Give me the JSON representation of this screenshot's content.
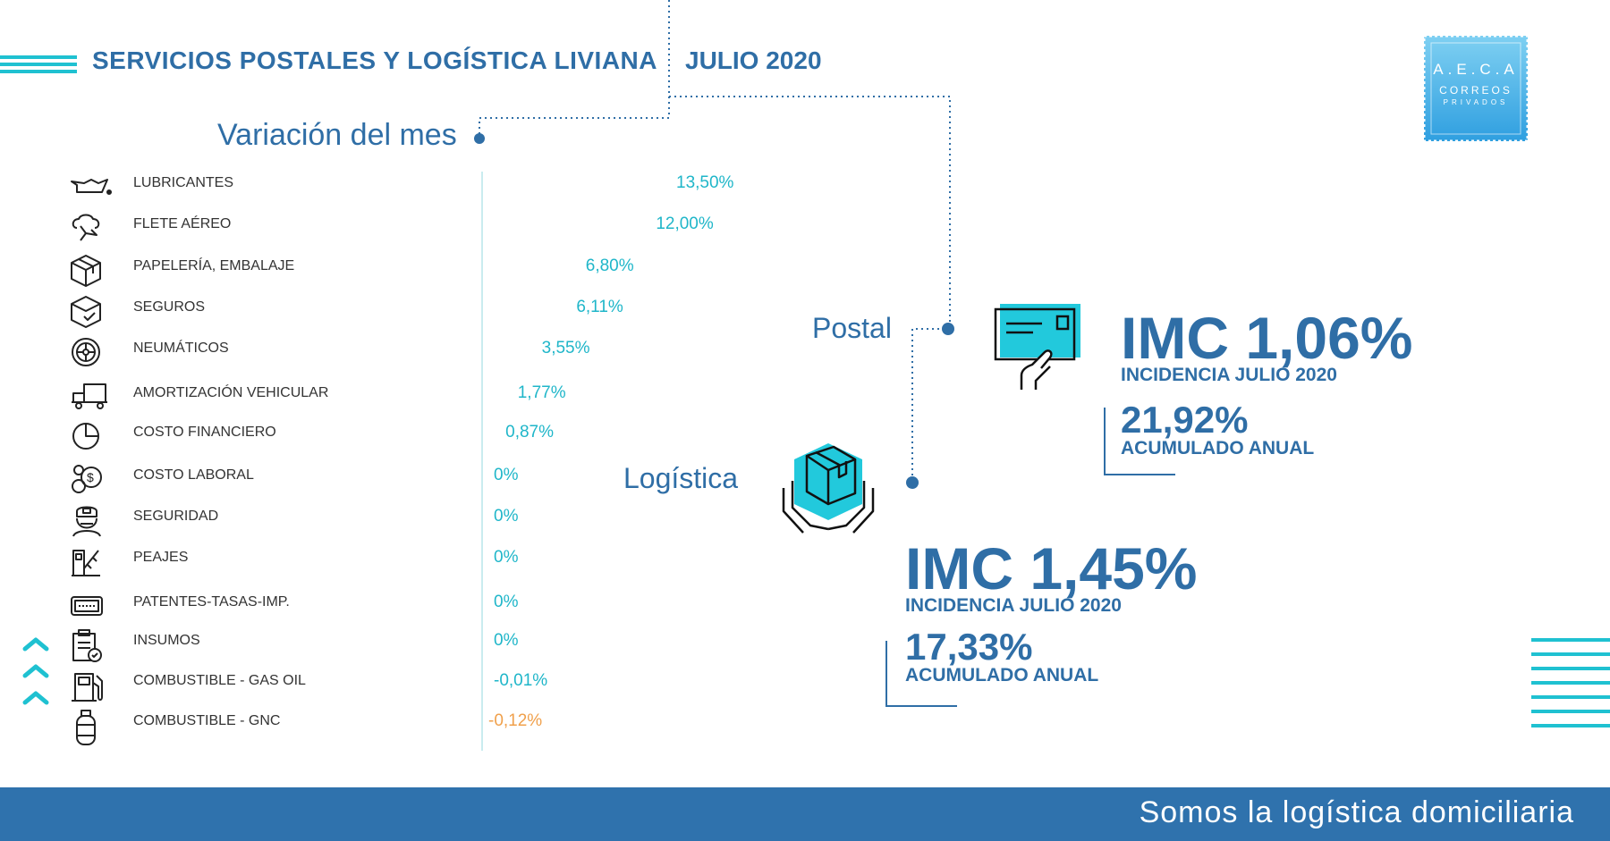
{
  "header": {
    "title": "SERVICIOS POSTALES Y LOGÍSTICA LIVIANA",
    "date": "JULIO 2020"
  },
  "section_title": "Variación del mes",
  "logo": {
    "line1": "A.E.C.A",
    "line2": "CORREOS",
    "line3": "PRIVADOS"
  },
  "postal": {
    "label": "Postal",
    "imc": "IMC 1,06%",
    "incidencia": "INCIDENCIA JULIO 2020",
    "acumulado_value": "21,92%",
    "acumulado_label": "ACUMULADO ANUAL"
  },
  "logistica": {
    "label": "Logística",
    "imc": "IMC 1,45%",
    "incidencia": "INCIDENCIA JULIO 2020",
    "acumulado_value": "17,33%",
    "acumulado_label": "ACUMULADO ANUAL"
  },
  "footer": {
    "text": "Somos la logística domiciliaria"
  },
  "colors": {
    "primary": "#2f6ea6",
    "accent": "#1fb6c9",
    "negative": "#f0a04b",
    "footer": "#2f72ad"
  },
  "chart_data": {
    "type": "bar",
    "orientation": "horizontal",
    "categories": [
      "LUBRICANTES",
      "FLETE AÉREO",
      "PAPELERÍA, EMBALAJE",
      "SEGUROS",
      "NEUMÁTICOS",
      "AMORTIZACIÓN VEHICULAR",
      "COSTO FINANCIERO",
      "COSTO LABORAL",
      "SEGURIDAD",
      "PEAJES",
      "PATENTES-TASAS-IMP.",
      "INSUMOS",
      "COMBUSTIBLE - GAS OIL",
      "COMBUSTIBLE - GNC"
    ],
    "values": [
      13.5,
      12.0,
      6.8,
      6.11,
      3.55,
      1.77,
      0.87,
      0,
      0,
      0,
      0,
      0,
      -0.01,
      -0.12
    ],
    "value_labels": [
      "13,50%",
      "12,00%",
      "6,80%",
      "6,11%",
      "3,55%",
      "1,77%",
      "0,87%",
      "0%",
      "0%",
      "0%",
      "0%",
      "0%",
      "-0,01%",
      "-0,12%"
    ],
    "icons": [
      "oil-can-icon",
      "airplane-cloud-icon",
      "box-icon",
      "insured-box-icon",
      "tire-icon",
      "truck-icon",
      "pie-chart-icon",
      "coins-icon",
      "security-guard-icon",
      "toll-barrier-icon",
      "tax-plate-icon",
      "clipboard-check-icon",
      "fuel-pump-icon",
      "gas-cylinder-icon"
    ],
    "title": "Variación del mes",
    "xlim": [
      -0.5,
      14
    ]
  }
}
